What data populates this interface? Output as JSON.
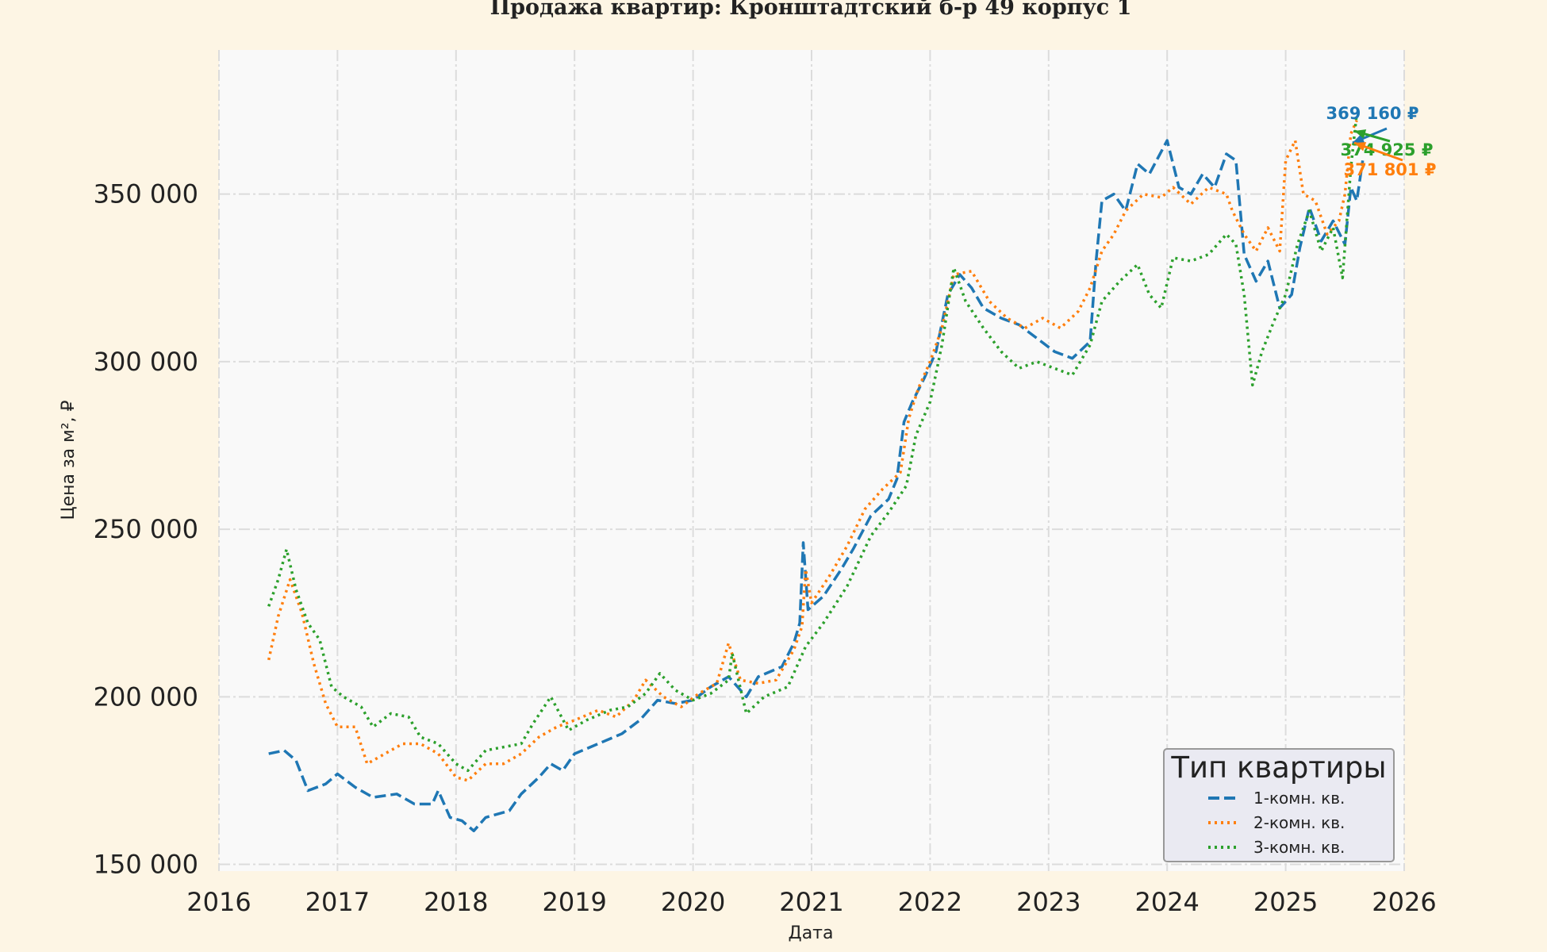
{
  "chart_data": {
    "type": "line",
    "title": "Продажа квартир: Кронштадтский б-р 49 корпус 1",
    "xlabel": "Дата",
    "ylabel": "Цена за м², ₽",
    "xlim": [
      2016,
      2026
    ],
    "ylim": [
      148000,
      393000
    ],
    "x_ticks": [
      "2016",
      "2017",
      "2018",
      "2019",
      "2020",
      "2021",
      "2022",
      "2023",
      "2024",
      "2025",
      "2026"
    ],
    "y_ticks": [
      150000,
      200000,
      250000,
      300000,
      350000
    ],
    "y_tick_labels": [
      "150 000",
      "200 000",
      "250 000",
      "300 000",
      "350 000"
    ],
    "grid": true,
    "legend": {
      "title": "Тип квартиры",
      "placement": "bottom-right"
    },
    "series": [
      {
        "name": "1-комн. кв.",
        "color": "#1f77b4",
        "style": "dashed",
        "points": [
          [
            2016.42,
            183000
          ],
          [
            2016.55,
            184000
          ],
          [
            2016.65,
            181000
          ],
          [
            2016.75,
            172000
          ],
          [
            2016.9,
            174000
          ],
          [
            2017.0,
            177000
          ],
          [
            2017.15,
            173000
          ],
          [
            2017.3,
            170000
          ],
          [
            2017.5,
            171000
          ],
          [
            2017.65,
            168000
          ],
          [
            2017.8,
            168000
          ],
          [
            2017.85,
            172000
          ],
          [
            2017.95,
            164000
          ],
          [
            2018.05,
            163000
          ],
          [
            2018.15,
            160000
          ],
          [
            2018.25,
            164000
          ],
          [
            2018.45,
            166000
          ],
          [
            2018.55,
            171000
          ],
          [
            2018.7,
            176000
          ],
          [
            2018.8,
            180000
          ],
          [
            2018.9,
            178000
          ],
          [
            2019.0,
            183000
          ],
          [
            2019.2,
            186000
          ],
          [
            2019.4,
            189000
          ],
          [
            2019.55,
            193000
          ],
          [
            2019.7,
            199000
          ],
          [
            2019.85,
            198000
          ],
          [
            2020.0,
            199000
          ],
          [
            2020.15,
            203000
          ],
          [
            2020.3,
            206000
          ],
          [
            2020.45,
            200000
          ],
          [
            2020.55,
            206000
          ],
          [
            2020.75,
            209000
          ],
          [
            2020.85,
            216000
          ],
          [
            2020.9,
            222000
          ],
          [
            2020.93,
            246000
          ],
          [
            2020.97,
            226000
          ],
          [
            2021.1,
            230000
          ],
          [
            2021.25,
            238000
          ],
          [
            2021.35,
            244000
          ],
          [
            2021.5,
            254000
          ],
          [
            2021.65,
            259000
          ],
          [
            2021.72,
            265000
          ],
          [
            2021.78,
            282000
          ],
          [
            2021.85,
            288000
          ],
          [
            2021.95,
            295000
          ],
          [
            2022.05,
            303000
          ],
          [
            2022.15,
            320000
          ],
          [
            2022.25,
            326000
          ],
          [
            2022.35,
            322000
          ],
          [
            2022.45,
            316000
          ],
          [
            2022.6,
            313000
          ],
          [
            2022.75,
            311000
          ],
          [
            2022.9,
            307000
          ],
          [
            2023.05,
            303000
          ],
          [
            2023.2,
            301000
          ],
          [
            2023.35,
            306000
          ],
          [
            2023.4,
            330000
          ],
          [
            2023.45,
            348000
          ],
          [
            2023.55,
            350000
          ],
          [
            2023.65,
            345000
          ],
          [
            2023.75,
            359000
          ],
          [
            2023.85,
            356000
          ],
          [
            2024.0,
            366000
          ],
          [
            2024.1,
            352000
          ],
          [
            2024.2,
            350000
          ],
          [
            2024.3,
            356000
          ],
          [
            2024.4,
            352000
          ],
          [
            2024.5,
            362000
          ],
          [
            2024.58,
            360000
          ],
          [
            2024.65,
            332000
          ],
          [
            2024.75,
            324000
          ],
          [
            2024.85,
            330000
          ],
          [
            2024.95,
            316000
          ],
          [
            2025.05,
            320000
          ],
          [
            2025.12,
            334000
          ],
          [
            2025.2,
            346000
          ],
          [
            2025.3,
            336000
          ],
          [
            2025.4,
            342000
          ],
          [
            2025.5,
            335000
          ],
          [
            2025.55,
            352000
          ],
          [
            2025.6,
            348000
          ],
          [
            2025.65,
            360000
          ]
        ]
      },
      {
        "name": "2-комн. кв.",
        "color": "#ff7f0e",
        "style": "dotted",
        "points": [
          [
            2016.42,
            211000
          ],
          [
            2016.5,
            224000
          ],
          [
            2016.6,
            235000
          ],
          [
            2016.7,
            225000
          ],
          [
            2016.8,
            210000
          ],
          [
            2016.9,
            198000
          ],
          [
            2017.0,
            191000
          ],
          [
            2017.15,
            191000
          ],
          [
            2017.25,
            180000
          ],
          [
            2017.4,
            183000
          ],
          [
            2017.55,
            186000
          ],
          [
            2017.7,
            186000
          ],
          [
            2017.85,
            183000
          ],
          [
            2018.0,
            176000
          ],
          [
            2018.1,
            175000
          ],
          [
            2018.25,
            180000
          ],
          [
            2018.4,
            180000
          ],
          [
            2018.55,
            183000
          ],
          [
            2018.7,
            188000
          ],
          [
            2018.85,
            191000
          ],
          [
            2019.0,
            193000
          ],
          [
            2019.2,
            196000
          ],
          [
            2019.35,
            194000
          ],
          [
            2019.5,
            199000
          ],
          [
            2019.6,
            205000
          ],
          [
            2019.75,
            200000
          ],
          [
            2019.9,
            197000
          ],
          [
            2020.05,
            201000
          ],
          [
            2020.2,
            204000
          ],
          [
            2020.3,
            216000
          ],
          [
            2020.4,
            205000
          ],
          [
            2020.55,
            204000
          ],
          [
            2020.7,
            205000
          ],
          [
            2020.85,
            214000
          ],
          [
            2020.92,
            221000
          ],
          [
            2020.95,
            238000
          ],
          [
            2021.0,
            228000
          ],
          [
            2021.15,
            236000
          ],
          [
            2021.3,
            245000
          ],
          [
            2021.45,
            256000
          ],
          [
            2021.6,
            262000
          ],
          [
            2021.75,
            267000
          ],
          [
            2021.82,
            283000
          ],
          [
            2021.9,
            292000
          ],
          [
            2022.0,
            300000
          ],
          [
            2022.1,
            310000
          ],
          [
            2022.2,
            326000
          ],
          [
            2022.35,
            327000
          ],
          [
            2022.5,
            318000
          ],
          [
            2022.65,
            313000
          ],
          [
            2022.8,
            310000
          ],
          [
            2022.95,
            313000
          ],
          [
            2023.1,
            310000
          ],
          [
            2023.25,
            315000
          ],
          [
            2023.35,
            322000
          ],
          [
            2023.45,
            333000
          ],
          [
            2023.55,
            338000
          ],
          [
            2023.65,
            345000
          ],
          [
            2023.8,
            350000
          ],
          [
            2023.95,
            349000
          ],
          [
            2024.05,
            352000
          ],
          [
            2024.2,
            347000
          ],
          [
            2024.35,
            352000
          ],
          [
            2024.5,
            350000
          ],
          [
            2024.55,
            345000
          ],
          [
            2024.65,
            338000
          ],
          [
            2024.75,
            333000
          ],
          [
            2024.85,
            340000
          ],
          [
            2024.95,
            333000
          ],
          [
            2025.0,
            360000
          ],
          [
            2025.08,
            366000
          ],
          [
            2025.15,
            350000
          ],
          [
            2025.25,
            348000
          ],
          [
            2025.35,
            338000
          ],
          [
            2025.45,
            342000
          ],
          [
            2025.5,
            350000
          ],
          [
            2025.55,
            368000
          ],
          [
            2025.6,
            372000
          ]
        ]
      },
      {
        "name": "3-комн. кв.",
        "color": "#2ca02c",
        "style": "dotted",
        "points": [
          [
            2016.42,
            227000
          ],
          [
            2016.5,
            235000
          ],
          [
            2016.57,
            244000
          ],
          [
            2016.65,
            232000
          ],
          [
            2016.75,
            222000
          ],
          [
            2016.85,
            217000
          ],
          [
            2016.95,
            203000
          ],
          [
            2017.05,
            200000
          ],
          [
            2017.2,
            197000
          ],
          [
            2017.3,
            191000
          ],
          [
            2017.45,
            195000
          ],
          [
            2017.6,
            194000
          ],
          [
            2017.7,
            188000
          ],
          [
            2017.85,
            186000
          ],
          [
            2018.0,
            180000
          ],
          [
            2018.1,
            178000
          ],
          [
            2018.25,
            184000
          ],
          [
            2018.4,
            185000
          ],
          [
            2018.55,
            186000
          ],
          [
            2018.65,
            192000
          ],
          [
            2018.8,
            200000
          ],
          [
            2018.95,
            190000
          ],
          [
            2019.1,
            193000
          ],
          [
            2019.3,
            196000
          ],
          [
            2019.45,
            197000
          ],
          [
            2019.6,
            201000
          ],
          [
            2019.72,
            207000
          ],
          [
            2019.85,
            202000
          ],
          [
            2020.0,
            199000
          ],
          [
            2020.15,
            201000
          ],
          [
            2020.3,
            205000
          ],
          [
            2020.33,
            213000
          ],
          [
            2020.45,
            195000
          ],
          [
            2020.6,
            200000
          ],
          [
            2020.8,
            203000
          ],
          [
            2020.95,
            215000
          ],
          [
            2021.1,
            222000
          ],
          [
            2021.3,
            233000
          ],
          [
            2021.5,
            248000
          ],
          [
            2021.65,
            255000
          ],
          [
            2021.8,
            263000
          ],
          [
            2021.88,
            278000
          ],
          [
            2022.0,
            288000
          ],
          [
            2022.1,
            305000
          ],
          [
            2022.2,
            328000
          ],
          [
            2022.3,
            318000
          ],
          [
            2022.45,
            310000
          ],
          [
            2022.6,
            303000
          ],
          [
            2022.75,
            298000
          ],
          [
            2022.9,
            300000
          ],
          [
            2023.05,
            298000
          ],
          [
            2023.2,
            296000
          ],
          [
            2023.35,
            305000
          ],
          [
            2023.45,
            318000
          ],
          [
            2023.6,
            324000
          ],
          [
            2023.75,
            329000
          ],
          [
            2023.85,
            320000
          ],
          [
            2023.95,
            316000
          ],
          [
            2024.05,
            331000
          ],
          [
            2024.2,
            330000
          ],
          [
            2024.35,
            332000
          ],
          [
            2024.5,
            338000
          ],
          [
            2024.58,
            335000
          ],
          [
            2024.65,
            320000
          ],
          [
            2024.72,
            293000
          ],
          [
            2024.8,
            303000
          ],
          [
            2024.9,
            312000
          ],
          [
            2025.0,
            320000
          ],
          [
            2025.1,
            335000
          ],
          [
            2025.2,
            345000
          ],
          [
            2025.3,
            333000
          ],
          [
            2025.4,
            340000
          ],
          [
            2025.48,
            325000
          ],
          [
            2025.55,
            358000
          ],
          [
            2025.6,
            374000
          ]
        ]
      }
    ],
    "annotations": [
      {
        "series": 0,
        "text": "369 160 ₽",
        "color": "#1f77b4"
      },
      {
        "series": 2,
        "text": "374 925 ₽",
        "color": "#2ca02c"
      },
      {
        "series": 1,
        "text": "371 801 ₽",
        "color": "#ff7f0e"
      }
    ]
  }
}
